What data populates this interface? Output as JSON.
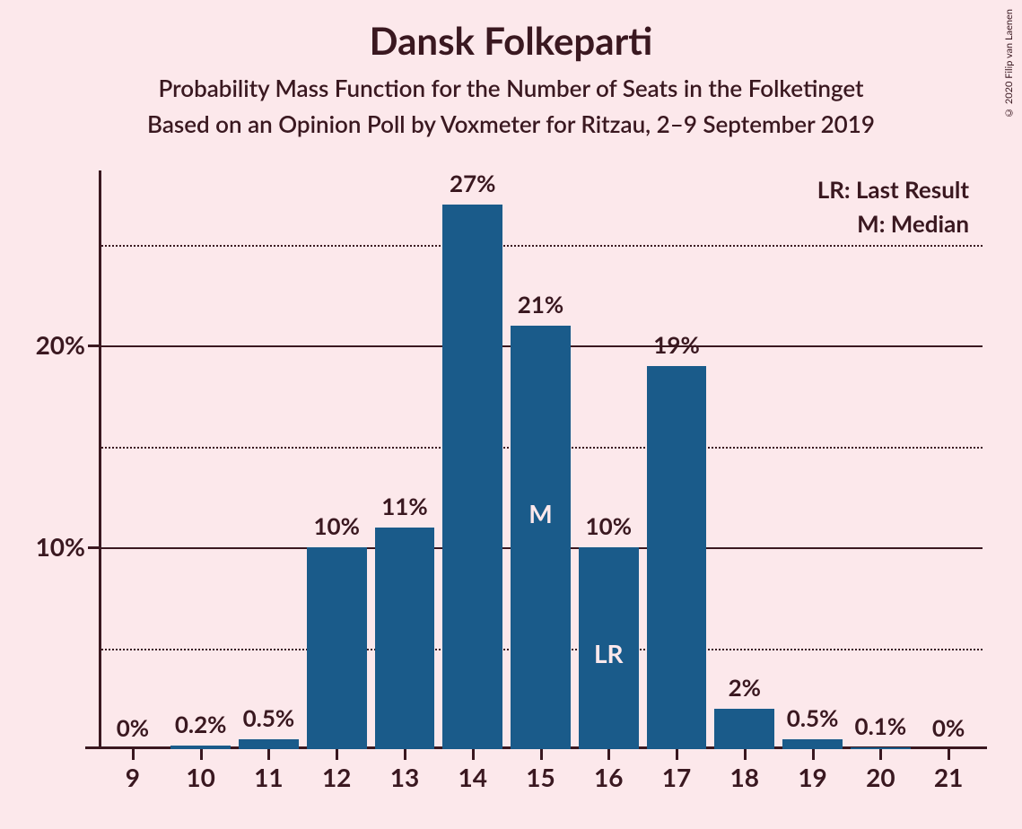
{
  "title": "Dansk Folkeparti",
  "subtitle1": "Probability Mass Function for the Number of Seats in the Folketinget",
  "subtitle2": "Based on an Opinion Poll by Voxmeter for Ritzau, 2–9 September 2019",
  "copyright": "© 2020 Filip van Laenen",
  "legend": {
    "lr": "LR: Last Result",
    "m": "M: Median"
  },
  "chart": {
    "type": "bar",
    "categories": [
      9,
      10,
      11,
      12,
      13,
      14,
      15,
      16,
      17,
      18,
      19,
      20,
      21
    ],
    "values": [
      0,
      0.2,
      0.5,
      10,
      11,
      27,
      21,
      10,
      19,
      2,
      0.5,
      0.1,
      0
    ],
    "value_labels": [
      "0%",
      "0.2%",
      "0.5%",
      "10%",
      "11%",
      "27%",
      "21%",
      "10%",
      "19%",
      "2%",
      "0.5%",
      "0.1%",
      "0%"
    ],
    "bar_color": "#1a5b8a",
    "background_color": "#fce8eb",
    "text_color": "#3a1820",
    "ylim": [
      0,
      28
    ],
    "y_major_ticks": [
      10,
      20
    ],
    "y_minor_ticks": [
      5,
      15,
      25
    ],
    "y_major_labels": [
      "10%",
      "20%"
    ],
    "median_index": 6,
    "median_label": "M",
    "last_result_index": 7,
    "last_result_label": "LR",
    "bar_width_ratio": 0.88,
    "title_fontsize": 42,
    "subtitle_fontsize": 26,
    "axis_label_fontsize": 28,
    "bar_label_fontsize": 26
  }
}
